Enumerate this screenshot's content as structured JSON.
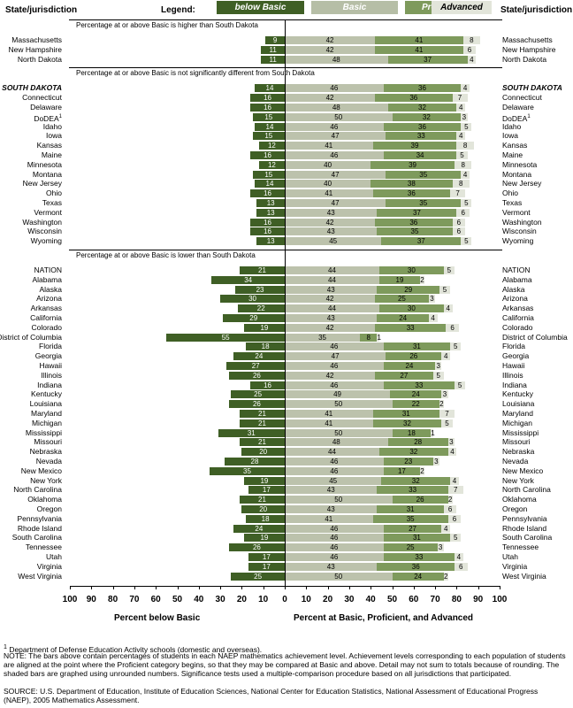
{
  "header": {
    "left_title": "State/jurisdiction",
    "right_title": "State/jurisdiction",
    "legend_label": "Legend:",
    "legend": [
      {
        "name": "below Basic",
        "color": "#3f5f25",
        "text_color": "#ffffff"
      },
      {
        "name": "Basic",
        "color": "#b6bea6",
        "text_color": "#ffffff"
      },
      {
        "name": "Proficient",
        "color": "#7e9a5c",
        "text_color": "#ffffff"
      },
      {
        "name": "Advanced",
        "color": "#e2e5da",
        "text_color": "#000000"
      }
    ]
  },
  "chart_data": {
    "type": "bar",
    "x_left_label": "Percent below Basic",
    "x_right_label": "Percent at Basic, Proficient, and Advanced",
    "ticks": [
      "100",
      "90",
      "80",
      "70",
      "60",
      "50",
      "40",
      "30",
      "20",
      "10",
      "0",
      "10",
      "20",
      "30",
      "40",
      "50",
      "60",
      "70",
      "80",
      "90",
      "100"
    ],
    "groups": [
      {
        "label": "Percentage at or above Basic is higher than South Dakota",
        "rows": [
          {
            "name": "Massachusetts",
            "below": 9,
            "basic": 42,
            "proficient": 41,
            "advanced": 8
          },
          {
            "name": "New Hampshire",
            "below": 11,
            "basic": 42,
            "proficient": 41,
            "advanced": 6
          },
          {
            "name": "North Dakota",
            "below": 11,
            "basic": 48,
            "proficient": 37,
            "advanced": 4
          }
        ]
      },
      {
        "label": "Percentage at or above Basic is not significantly different from South Dakota",
        "rows": [
          {
            "name": "SOUTH DAKOTA",
            "below": 14,
            "basic": 46,
            "proficient": 36,
            "advanced": 4,
            "bold": true
          },
          {
            "name": "Connecticut",
            "below": 16,
            "basic": 42,
            "proficient": 36,
            "advanced": 7
          },
          {
            "name": "Delaware",
            "below": 16,
            "basic": 48,
            "proficient": 32,
            "advanced": 4
          },
          {
            "name": "DoDEA",
            "sup": "1",
            "below": 15,
            "basic": 50,
            "proficient": 32,
            "advanced": 3
          },
          {
            "name": "Idaho",
            "below": 14,
            "basic": 46,
            "proficient": 36,
            "advanced": 5
          },
          {
            "name": "Iowa",
            "below": 15,
            "basic": 47,
            "proficient": 33,
            "advanced": 4
          },
          {
            "name": "Kansas",
            "below": 12,
            "basic": 41,
            "proficient": 39,
            "advanced": 8
          },
          {
            "name": "Maine",
            "below": 16,
            "basic": 46,
            "proficient": 34,
            "advanced": 5
          },
          {
            "name": "Minnesota",
            "below": 12,
            "basic": 40,
            "proficient": 39,
            "advanced": 8
          },
          {
            "name": "Montana",
            "below": 15,
            "basic": 47,
            "proficient": 35,
            "advanced": 4
          },
          {
            "name": "New Jersey",
            "below": 14,
            "basic": 40,
            "proficient": 38,
            "advanced": 8
          },
          {
            "name": "Ohio",
            "below": 16,
            "basic": 41,
            "proficient": 36,
            "advanced": 7
          },
          {
            "name": "Texas",
            "below": 13,
            "basic": 47,
            "proficient": 35,
            "advanced": 5
          },
          {
            "name": "Vermont",
            "below": 13,
            "basic": 43,
            "proficient": 37,
            "advanced": 6
          },
          {
            "name": "Washington",
            "below": 16,
            "basic": 42,
            "proficient": 36,
            "advanced": 6
          },
          {
            "name": "Wisconsin",
            "below": 16,
            "basic": 43,
            "proficient": 35,
            "advanced": 6
          },
          {
            "name": "Wyoming",
            "below": 13,
            "basic": 45,
            "proficient": 37,
            "advanced": 5
          }
        ]
      },
      {
        "label": "Percentage at or above Basic is lower than South Dakota",
        "rows": [
          {
            "name": "NATION",
            "below": 21,
            "basic": 44,
            "proficient": 30,
            "advanced": 5
          },
          {
            "name": "Alabama",
            "below": 34,
            "basic": 44,
            "proficient": 19,
            "advanced": 2
          },
          {
            "name": "Alaska",
            "below": 23,
            "basic": 43,
            "proficient": 29,
            "advanced": 5
          },
          {
            "name": "Arizona",
            "below": 30,
            "basic": 42,
            "proficient": 25,
            "advanced": 3
          },
          {
            "name": "Arkansas",
            "below": 22,
            "basic": 44,
            "proficient": 30,
            "advanced": 4
          },
          {
            "name": "California",
            "below": 29,
            "basic": 43,
            "proficient": 24,
            "advanced": 4
          },
          {
            "name": "Colorado",
            "below": 19,
            "basic": 42,
            "proficient": 33,
            "advanced": 6
          },
          {
            "name": "District of Columbia",
            "below": 55,
            "basic": 35,
            "proficient": 8,
            "advanced": 1
          },
          {
            "name": "Florida",
            "below": 18,
            "basic": 46,
            "proficient": 31,
            "advanced": 5
          },
          {
            "name": "Georgia",
            "below": 24,
            "basic": 47,
            "proficient": 26,
            "advanced": 4
          },
          {
            "name": "Hawaii",
            "below": 27,
            "basic": 46,
            "proficient": 24,
            "advanced": 3
          },
          {
            "name": "Illinois",
            "below": 26,
            "basic": 42,
            "proficient": 27,
            "advanced": 5
          },
          {
            "name": "Indiana",
            "below": 16,
            "basic": 46,
            "proficient": 33,
            "advanced": 5
          },
          {
            "name": "Kentucky",
            "below": 25,
            "basic": 49,
            "proficient": 24,
            "advanced": 3
          },
          {
            "name": "Louisiana",
            "below": 26,
            "basic": 50,
            "proficient": 22,
            "advanced": 2
          },
          {
            "name": "Maryland",
            "below": 21,
            "basic": 41,
            "proficient": 31,
            "advanced": 7
          },
          {
            "name": "Michigan",
            "below": 21,
            "basic": 41,
            "proficient": 32,
            "advanced": 5
          },
          {
            "name": "Mississippi",
            "below": 31,
            "basic": 50,
            "proficient": 18,
            "advanced": 1
          },
          {
            "name": "Missouri",
            "below": 21,
            "basic": 48,
            "proficient": 28,
            "advanced": 3
          },
          {
            "name": "Nebraska",
            "below": 20,
            "basic": 44,
            "proficient": 32,
            "advanced": 4
          },
          {
            "name": "Nevada",
            "below": 28,
            "basic": 46,
            "proficient": 23,
            "advanced": 3
          },
          {
            "name": "New Mexico",
            "below": 35,
            "basic": 46,
            "proficient": 17,
            "advanced": 2
          },
          {
            "name": "New York",
            "below": 19,
            "basic": 45,
            "proficient": 32,
            "advanced": 4
          },
          {
            "name": "North Carolina",
            "below": 17,
            "basic": 43,
            "proficient": 33,
            "advanced": 7
          },
          {
            "name": "Oklahoma",
            "below": 21,
            "basic": 50,
            "proficient": 26,
            "advanced": 2
          },
          {
            "name": "Oregon",
            "below": 20,
            "basic": 43,
            "proficient": 31,
            "advanced": 6
          },
          {
            "name": "Pennsylvania",
            "below": 18,
            "basic": 41,
            "proficient": 35,
            "advanced": 6
          },
          {
            "name": "Rhode Island",
            "below": 24,
            "basic": 46,
            "proficient": 27,
            "advanced": 4
          },
          {
            "name": "South Carolina",
            "below": 19,
            "basic": 46,
            "proficient": 31,
            "advanced": 5
          },
          {
            "name": "Tennessee",
            "below": 26,
            "basic": 46,
            "proficient": 25,
            "advanced": 3
          },
          {
            "name": "Utah",
            "below": 17,
            "basic": 46,
            "proficient": 33,
            "advanced": 4
          },
          {
            "name": "Virginia",
            "below": 17,
            "basic": 43,
            "proficient": 36,
            "advanced": 6
          },
          {
            "name": "West Virginia",
            "below": 25,
            "basic": 50,
            "proficient": 24,
            "advanced": 2
          }
        ]
      }
    ]
  },
  "notes": {
    "footnote": "Department of Defense Education Activity schools (domestic and overseas).",
    "footnote_mark": "1",
    "note": "NOTE: The bars above contain percentages of students in each NAEP mathematics achievement level. Achievement levels corresponding to each population of students are aligned at the point where the Proficient category begins, so that they may be compared at Basic and above. Detail may not sum to totals because of rounding. The shaded bars are graphed using unrounded numbers. Significance tests used a multiple-comparison procedure based on all jurisdictions that participated.",
    "source": "SOURCE: U.S. Department of Education, Institute of Education Sciences, National Center for Education Statistics, National Assessment of Educational Progress (NAEP), 2005 Mathematics Assessment."
  }
}
